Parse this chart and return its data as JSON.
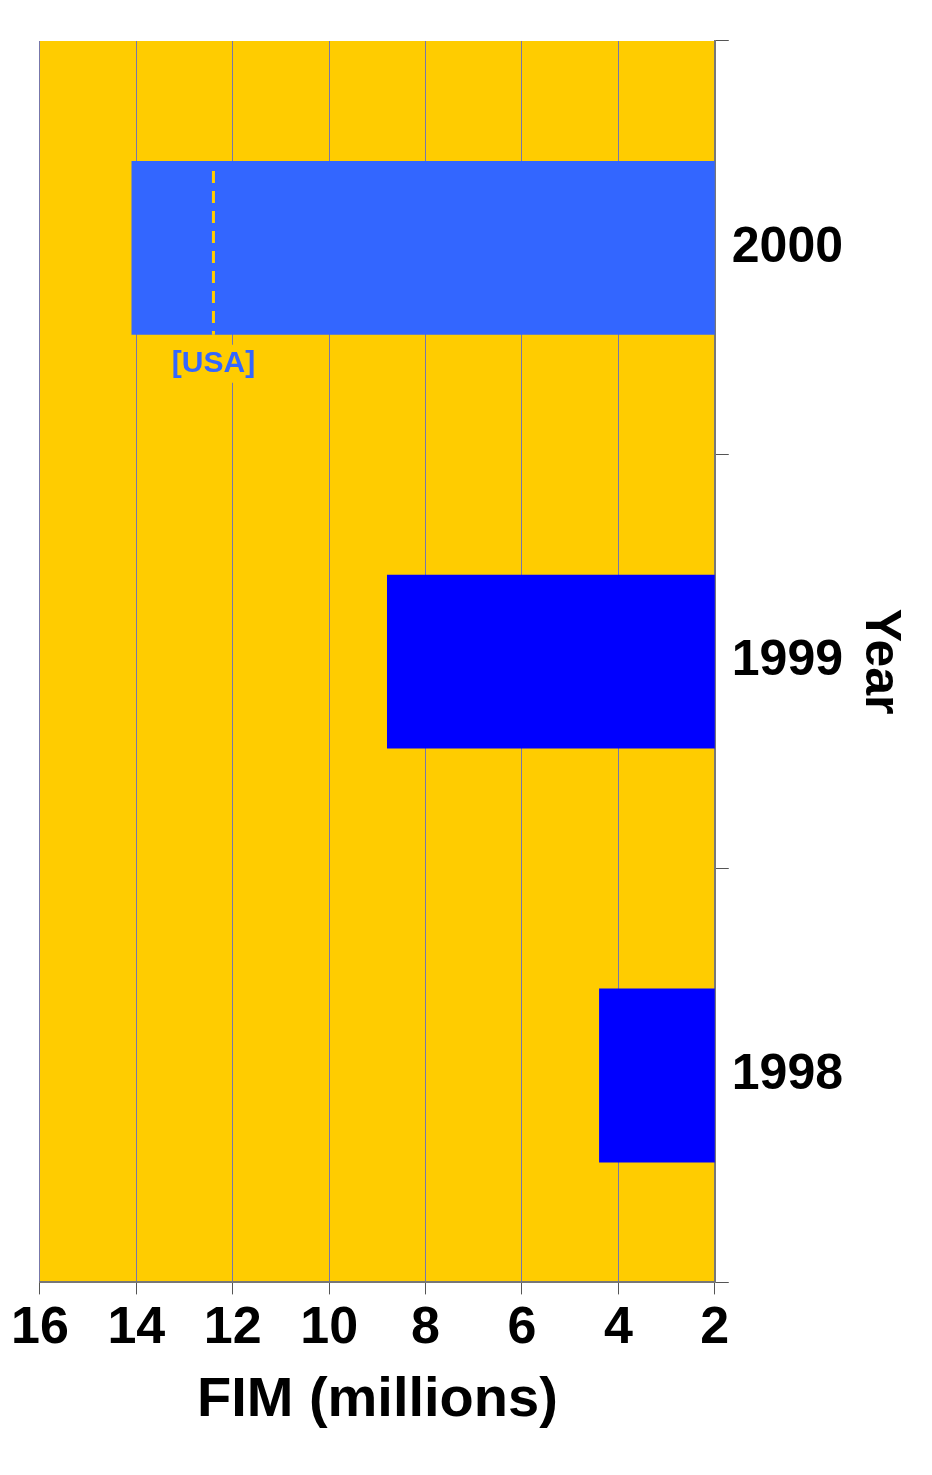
{
  "chart_data": {
    "type": "bar",
    "orientation": "horizontal",
    "xlabel": "FIM (millions)",
    "ylabel": "Year",
    "categories": [
      "2000",
      "1999",
      "1998"
    ],
    "values": [
      14.1,
      8.8,
      4.4
    ],
    "colors": [
      "#3366ff",
      "#0000ff",
      "#0000ff"
    ],
    "xlim": [
      16,
      2
    ],
    "xticks": [
      16,
      14,
      12,
      10,
      8,
      6,
      4,
      2
    ],
    "grid": "x",
    "ref_lines": [
      {
        "axis": "x",
        "value": 12.4,
        "label": "[USA]",
        "color": "#ffcc00",
        "line_style": "dashed"
      }
    ]
  }
}
